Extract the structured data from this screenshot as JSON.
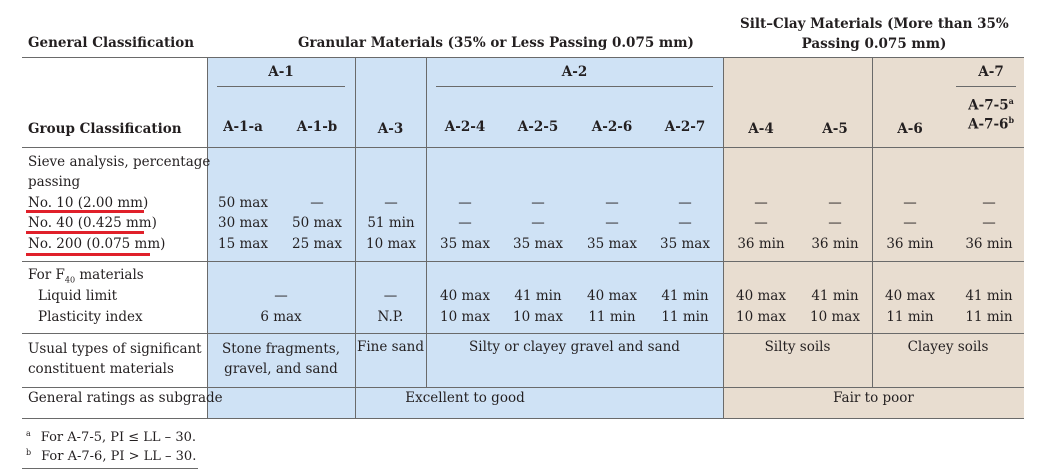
{
  "header": {
    "general_classification": "General Classification",
    "granular": "Granular Materials (35% or Less Passing 0.075 mm)",
    "siltclay_line1": "Silt–Clay Materials (More than 35%",
    "siltclay_line2": "Passing 0.075 mm)",
    "group_classification": "Group Classification"
  },
  "groups": {
    "a1": "A-1",
    "a2": "A-2",
    "a7": "A-7",
    "a1a": "A-1-a",
    "a1b": "A-1-b",
    "a3": "A-3",
    "a24": "A-2-4",
    "a25": "A-2-5",
    "a26": "A-2-6",
    "a27": "A-2-7",
    "a4": "A-4",
    "a5": "A-5",
    "a6": "A-6",
    "a75": "A-7-5",
    "a76": "A-7-6",
    "sup_a": "a",
    "sup_b": "b"
  },
  "sieve": {
    "label1": "Sieve analysis, percentage",
    "label2": "passing",
    "no10": "No. 10 (2.00 mm)",
    "no40": "No. 40 (0.425 mm)",
    "no200": "No. 200 (0.075 mm)",
    "rows": [
      [
        "50 max",
        "—",
        "—",
        "—",
        "—",
        "—",
        "—",
        "—",
        "—",
        "—",
        "—"
      ],
      [
        "30 max",
        "50 max",
        "51 min",
        "—",
        "—",
        "—",
        "—",
        "—",
        "—",
        "—",
        "—"
      ],
      [
        "15 max",
        "25 max",
        "10 max",
        "35 max",
        "35 max",
        "35 max",
        "35 max",
        "36 min",
        "36 min",
        "36 min",
        "36 min"
      ]
    ]
  },
  "f40": {
    "label_prefix": "For F",
    "label_sub": "40",
    "label_suffix": " materials",
    "liquid_limit": "Liquid limit",
    "plasticity_index": "Plasticity index",
    "a1_ll": "—",
    "a1_pi": "6 max",
    "a3_ll": "—",
    "a3_pi": "N.P.",
    "ll": [
      "40 max",
      "41 min",
      "40 max",
      "41 min",
      "40 max",
      "41 min",
      "40 max",
      "41 min"
    ],
    "pi": [
      "10 max",
      "10 max",
      "11 min",
      "11 min",
      "10 max",
      "10 max",
      "11 min",
      "11 min"
    ]
  },
  "usual": {
    "label1": "Usual types of significant",
    "label2": "constituent materials",
    "a1_line1": "Stone fragments,",
    "a1_line2": "gravel, and sand",
    "a3": "Fine sand",
    "a2": "Silty or clayey gravel and sand",
    "silty": "Silty soils",
    "clayey": "Clayey soils"
  },
  "rating": {
    "label": "General ratings as subgrade",
    "granular": "Excellent to good",
    "siltclay": "Fair to poor"
  },
  "footnotes": {
    "a_mark": "a",
    "a_text": "For A-7-5, PI ≤ LL – 30.",
    "b_mark": "b",
    "b_text": "For A-7-6, PI > LL – 30."
  },
  "colors": {
    "granular_fill": "#cfe2f5",
    "siltclay_fill": "#e8ddd0",
    "underline": "#e0202a"
  }
}
